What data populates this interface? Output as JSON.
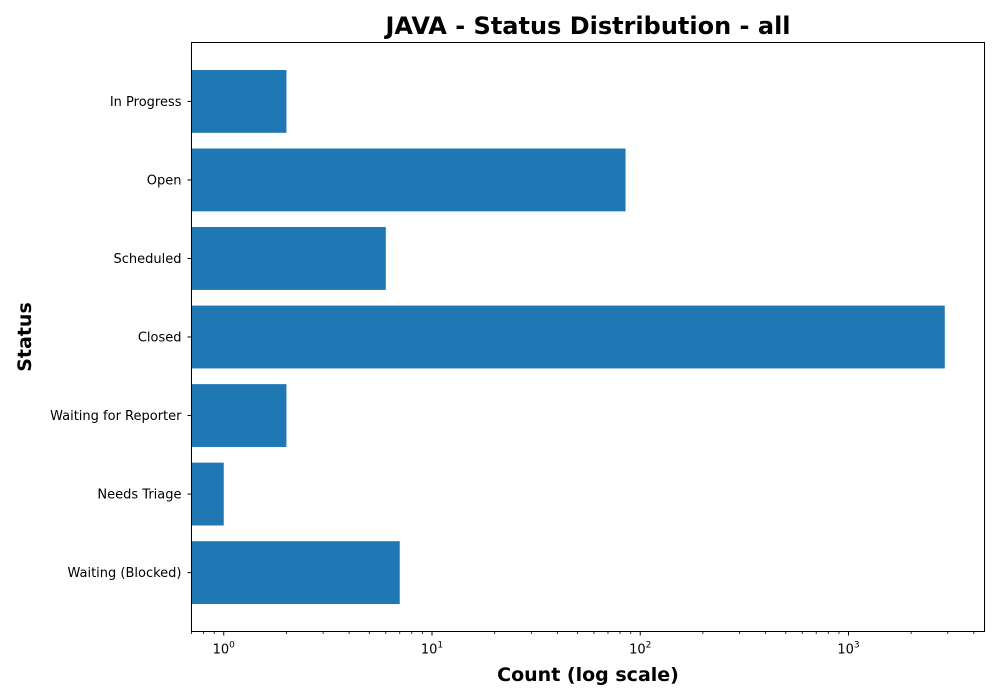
{
  "chart_data": {
    "type": "bar",
    "orientation": "horizontal",
    "title": "JAVA - Status Distribution - all",
    "xlabel": "Count (log scale)",
    "ylabel": "Status",
    "x_scale": "log",
    "xlim": [
      0.7,
      4500
    ],
    "x_ticks": [
      {
        "value": 1,
        "base": "10",
        "exp": "0"
      },
      {
        "value": 10,
        "base": "10",
        "exp": "1"
      },
      {
        "value": 100,
        "base": "10",
        "exp": "2"
      },
      {
        "value": 1000,
        "base": "10",
        "exp": "3"
      }
    ],
    "categories": [
      "In Progress",
      "Open",
      "Scheduled",
      "Closed",
      "Waiting for Reporter",
      "Needs Triage",
      "Waiting (Blocked)"
    ],
    "values": [
      2,
      85,
      6,
      2900,
      2,
      1,
      7
    ],
    "bar_color": "#1f77b4",
    "grid": false,
    "legend": "none"
  }
}
